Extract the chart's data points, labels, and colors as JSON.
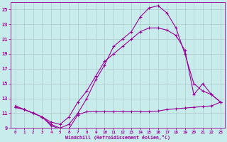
{
  "xlabel": "Windchill (Refroidissement éolien,°C)",
  "background_color": "#c8ecec",
  "grid_color": "#b0c8c8",
  "line_color": "#990099",
  "xlim": [
    -0.5,
    23.5
  ],
  "ylim": [
    9,
    26
  ],
  "yticks": [
    9,
    11,
    13,
    15,
    17,
    19,
    21,
    23,
    25
  ],
  "xticks": [
    0,
    1,
    2,
    3,
    4,
    5,
    6,
    7,
    8,
    9,
    10,
    11,
    12,
    13,
    14,
    15,
    16,
    17,
    18,
    19,
    20,
    21,
    22,
    23
  ],
  "line1_x": [
    0,
    1,
    2,
    3,
    4,
    5,
    6,
    7,
    8,
    9,
    10,
    11,
    12,
    13,
    14,
    15,
    16,
    17,
    18,
    19,
    20,
    21,
    22,
    23
  ],
  "line1_y": [
    12,
    11.5,
    11,
    10.5,
    9.5,
    9,
    9.5,
    11,
    13,
    15.5,
    17.5,
    20,
    21,
    22,
    24,
    25.2,
    25.5,
    24.5,
    22.5,
    19,
    15,
    14,
    13.5,
    12.5
  ],
  "line2_x": [
    0,
    1,
    2,
    3,
    4,
    5,
    6,
    7,
    8,
    9,
    10,
    11,
    12,
    13,
    14,
    15,
    16,
    17,
    18,
    19,
    20,
    21,
    22,
    23
  ],
  "line2_y": [
    11.8,
    11.5,
    11.0,
    10.5,
    9.3,
    8.9,
    8.9,
    10.8,
    11.2,
    11.2,
    11.2,
    11.2,
    11.2,
    11.2,
    11.2,
    11.2,
    11.3,
    11.5,
    11.6,
    11.7,
    11.8,
    11.9,
    12.0,
    12.5
  ],
  "line3_x": [
    0,
    1,
    2,
    3,
    4,
    5,
    6,
    7,
    8,
    9,
    10,
    11,
    12,
    13,
    14,
    15,
    16,
    17,
    18,
    19,
    20,
    21,
    22,
    23
  ],
  "line3_y": [
    11.8,
    11.5,
    11.0,
    10.5,
    9.8,
    9.5,
    10.5,
    12.5,
    14,
    16,
    18,
    19,
    20,
    21,
    22,
    22.5,
    22.5,
    22.2,
    21.5,
    19.5,
    13.5,
    15,
    13.5,
    12.5
  ]
}
